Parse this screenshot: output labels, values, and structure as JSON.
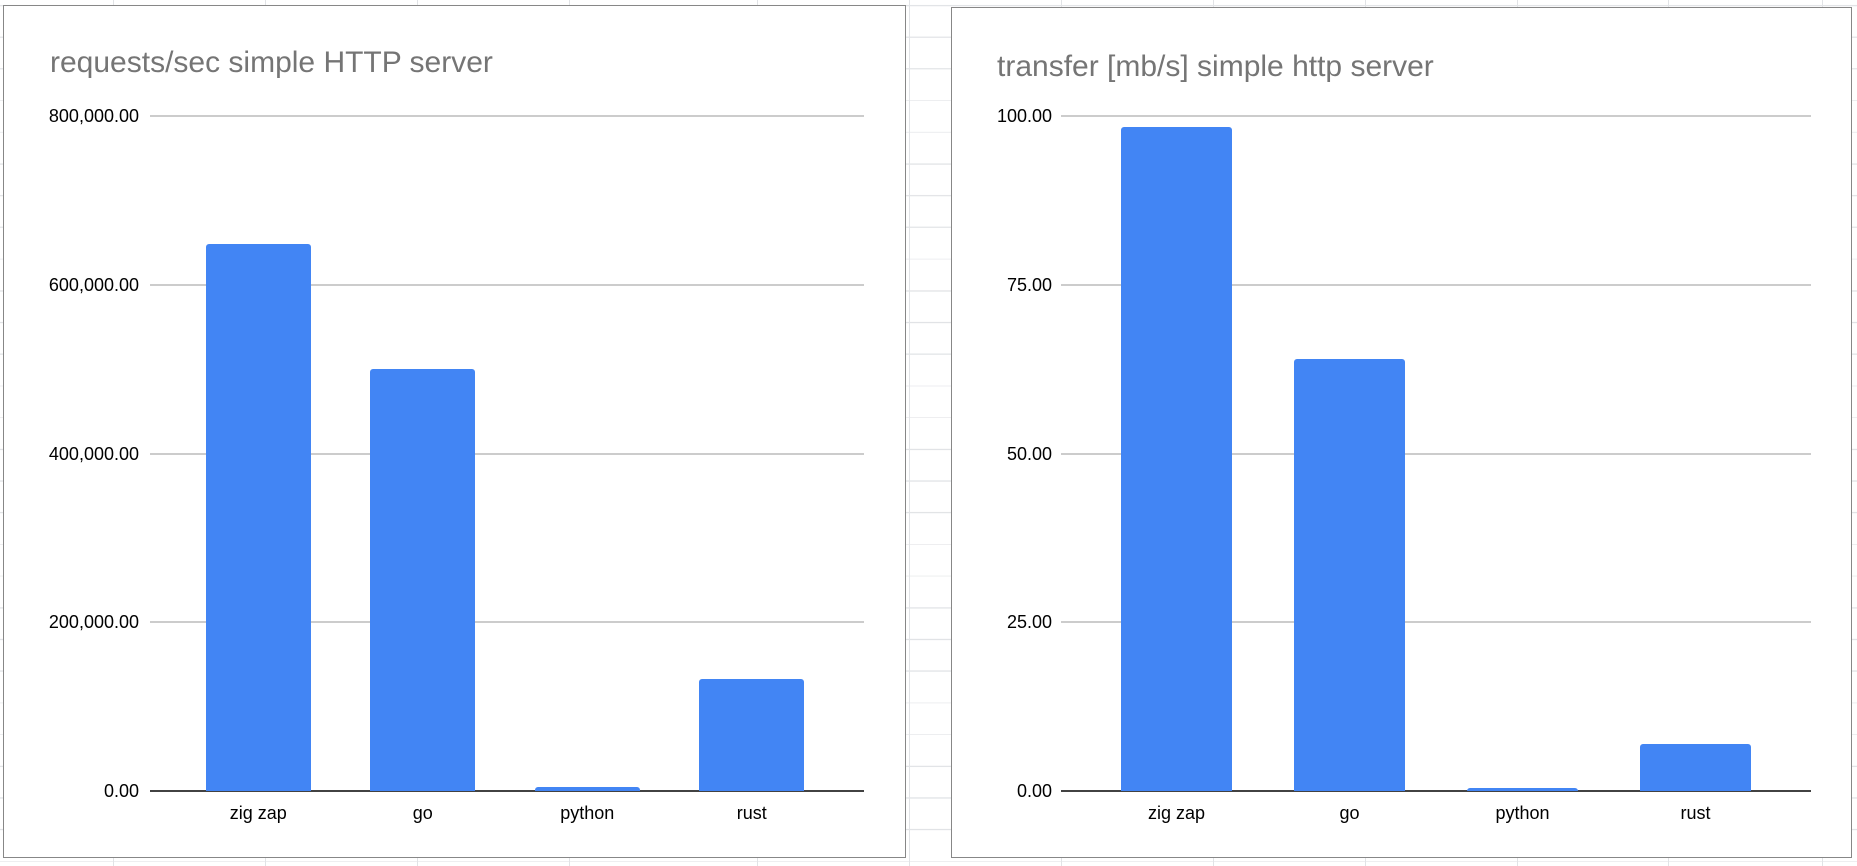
{
  "chart_data": [
    {
      "type": "bar",
      "title": "requests/sec simple HTTP server",
      "categories": [
        "zig zap",
        "go",
        "python",
        "rust"
      ],
      "values": [
        648000,
        500000,
        5000,
        133000
      ],
      "xlabel": "",
      "ylabel": "",
      "ylim": [
        0,
        800000
      ],
      "ytick_labels": [
        "800,000.00",
        "600,000.00",
        "400,000.00",
        "200,000.00",
        "0.00"
      ],
      "grid": true,
      "legend": "none",
      "bar_color": "#4285F4"
    },
    {
      "type": "bar",
      "title": "transfer [mb/s] simple http server",
      "categories": [
        "zig zap",
        "go",
        "python",
        "rust"
      ],
      "values": [
        98.4,
        64,
        0.5,
        7
      ],
      "xlabel": "",
      "ylabel": "",
      "ylim": [
        0,
        100
      ],
      "ytick_labels": [
        "100.00",
        "75.00",
        "50.00",
        "25.00",
        "0.00"
      ],
      "grid": true,
      "legend": "none",
      "bar_color": "#4285F4"
    }
  ],
  "colors": {
    "bar": "#4285F4",
    "chart_title": "#757575",
    "gridline": "#cccccc",
    "axis_line": "#424242",
    "card_border": "#878787",
    "sheet_gridline": "#e1e3e6",
    "tick_label": "#000000",
    "background": "#ffffff"
  }
}
